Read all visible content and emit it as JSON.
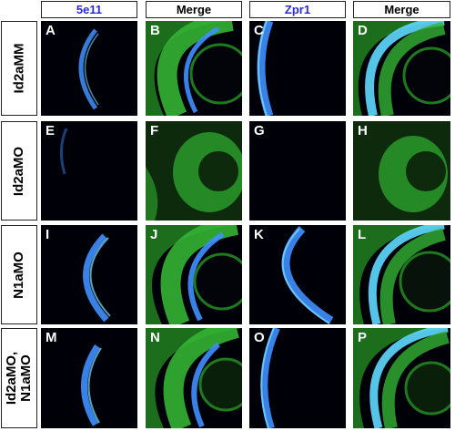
{
  "columns": [
    {
      "label": "5e11",
      "style": "blue"
    },
    {
      "label": "Merge",
      "style": "black"
    },
    {
      "label": "Zpr1",
      "style": "blue"
    },
    {
      "label": "Merge",
      "style": "black"
    }
  ],
  "rows": [
    {
      "label": "Id2aMM",
      "panels": [
        "A",
        "B",
        "C",
        "D"
      ]
    },
    {
      "label": "Id2aMO",
      "panels": [
        "E",
        "F",
        "G",
        "H"
      ]
    },
    {
      "label": "N1aMO",
      "panels": [
        "I",
        "J",
        "K",
        "L"
      ]
    },
    {
      "label": "Id2aMO,\nN1aMO",
      "panels": [
        "M",
        "N",
        "O",
        "P"
      ]
    }
  ],
  "colors": {
    "stain_blue": "#3f8fff",
    "stain_cyan": "#7fe6ff",
    "tissue_green": "#2a9a2a",
    "background": "#000008"
  }
}
